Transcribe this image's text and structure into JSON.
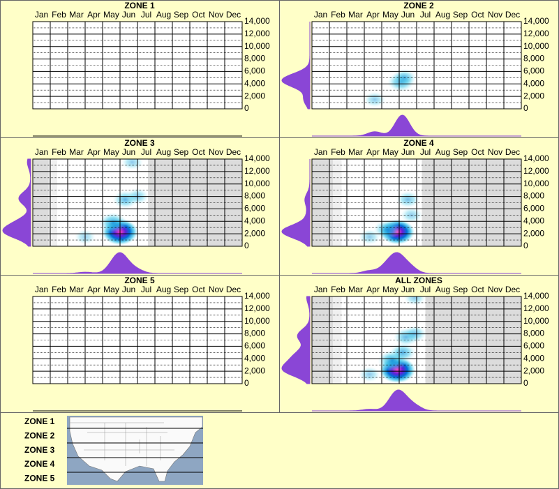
{
  "chart_data": [
    {
      "type": "heatmap",
      "title": "ZONE 1",
      "categories": [
        "Jan",
        "Feb",
        "Mar",
        "Apr",
        "May",
        "Jun",
        "Jul",
        "Aug",
        "Sep",
        "Oct",
        "Nov",
        "Dec"
      ],
      "xlim": [
        0,
        12
      ],
      "ylim": [
        0,
        14000
      ],
      "yticks": [
        0,
        {
          "value": 2000,
          "label": "2,000"
        },
        {
          "value": 4000,
          "label": "4,000"
        },
        {
          "value": 6000,
          "label": "6,000"
        },
        {
          "value": 8000,
          "label": "8,000"
        },
        {
          "value": 10000,
          "label": "10,000"
        },
        {
          "value": 12000,
          "label": "12,000"
        },
        {
          "value": 14000,
          "label": "14,000"
        }
      ],
      "shaded": false,
      "x": [],
      "values": [],
      "weights": [],
      "color": "#8a46d6"
    },
    {
      "type": "heatmap",
      "title": "ZONE 2",
      "categories": [
        "Jan",
        "Feb",
        "Mar",
        "Apr",
        "May",
        "Jun",
        "Jul",
        "Aug",
        "Sep",
        "Oct",
        "Nov",
        "Dec"
      ],
      "xlim": [
        0,
        12
      ],
      "ylim": [
        0,
        14000
      ],
      "yticks": [
        0,
        {
          "value": 2000,
          "label": "2,000"
        },
        {
          "value": 4000,
          "label": "4,000"
        },
        {
          "value": 6000,
          "label": "6,000"
        },
        {
          "value": 8000,
          "label": "8,000"
        },
        {
          "value": 10000,
          "label": "10,000"
        },
        {
          "value": 12000,
          "label": "12,000"
        },
        {
          "value": 14000,
          "label": "14,000"
        }
      ],
      "shaded": false,
      "x": [
        5.1,
        5.3,
        3.6
      ],
      "values": [
        4300,
        5000,
        1500
      ],
      "weights": [
        0.45,
        0.3,
        0.15
      ],
      "color": "#8a46d6"
    },
    {
      "type": "heatmap",
      "title": "ZONE 3",
      "categories": [
        "Jan",
        "Feb",
        "Mar",
        "Apr",
        "May",
        "Jun",
        "Jul",
        "Aug",
        "Sep",
        "Oct",
        "Nov",
        "Dec"
      ],
      "xlim": [
        0,
        12
      ],
      "ylim": [
        0,
        14000
      ],
      "yticks": [
        0,
        {
          "value": 2000,
          "label": "2,000"
        },
        {
          "value": 4000,
          "label": "4,000"
        },
        {
          "value": 6000,
          "label": "6,000"
        },
        {
          "value": 8000,
          "label": "8,000"
        },
        {
          "value": 10000,
          "label": "10,000"
        },
        {
          "value": 12000,
          "label": "12,000"
        },
        {
          "value": 14000,
          "label": "14,000"
        }
      ],
      "shaded": true,
      "x": [
        5.0,
        4.6,
        5.3,
        6.0,
        5.7,
        3.0
      ],
      "values": [
        2300,
        3800,
        7500,
        8000,
        13500,
        1500
      ],
      "weights": [
        1.0,
        0.5,
        0.35,
        0.2,
        0.15,
        0.1
      ],
      "color": "#8a46d6"
    },
    {
      "type": "heatmap",
      "title": "ZONE 4",
      "categories": [
        "Jan",
        "Feb",
        "Mar",
        "Apr",
        "May",
        "Jun",
        "Jul",
        "Aug",
        "Sep",
        "Oct",
        "Nov",
        "Dec"
      ],
      "xlim": [
        0,
        12
      ],
      "ylim": [
        0,
        14000
      ],
      "yticks": [
        0,
        {
          "value": 2000,
          "label": "2,000"
        },
        {
          "value": 4000,
          "label": "4,000"
        },
        {
          "value": 6000,
          "label": "6,000"
        },
        {
          "value": 8000,
          "label": "8,000"
        },
        {
          "value": 10000,
          "label": "10,000"
        },
        {
          "value": 12000,
          "label": "12,000"
        },
        {
          "value": 14000,
          "label": "14,000"
        }
      ],
      "shaded": true,
      "x": [
        4.9,
        4.3,
        5.5,
        5.7,
        3.3
      ],
      "values": [
        2300,
        2700,
        7500,
        5000,
        1500
      ],
      "weights": [
        0.9,
        0.45,
        0.25,
        0.15,
        0.15
      ],
      "color": "#8a46d6"
    },
    {
      "type": "heatmap",
      "title": "ZONE 5",
      "categories": [
        "Jan",
        "Feb",
        "Mar",
        "Apr",
        "May",
        "Jun",
        "Jul",
        "Aug",
        "Sep",
        "Oct",
        "Nov",
        "Dec"
      ],
      "xlim": [
        0,
        12
      ],
      "ylim": [
        0,
        14000
      ],
      "yticks": [
        0,
        {
          "value": 2000,
          "label": "2,000"
        },
        {
          "value": 4000,
          "label": "4,000"
        },
        {
          "value": 6000,
          "label": "6,000"
        },
        {
          "value": 8000,
          "label": "8,000"
        },
        {
          "value": 10000,
          "label": "10,000"
        },
        {
          "value": 12000,
          "label": "12,000"
        },
        {
          "value": 14000,
          "label": "14,000"
        }
      ],
      "shaded": false,
      "x": [],
      "values": [],
      "weights": [],
      "color": "#8a46d6"
    },
    {
      "type": "heatmap",
      "title": "ALL ZONES",
      "categories": [
        "Jan",
        "Feb",
        "Mar",
        "Apr",
        "May",
        "Jun",
        "Jul",
        "Aug",
        "Sep",
        "Oct",
        "Nov",
        "Dec"
      ],
      "xlim": [
        0,
        12
      ],
      "ylim": [
        0,
        14000
      ],
      "yticks": [
        0,
        {
          "value": 2000,
          "label": "2,000"
        },
        {
          "value": 4000,
          "label": "4,000"
        },
        {
          "value": 6000,
          "label": "6,000"
        },
        {
          "value": 8000,
          "label": "8,000"
        },
        {
          "value": 10000,
          "label": "10,000"
        },
        {
          "value": 12000,
          "label": "12,000"
        },
        {
          "value": 14000,
          "label": "14,000"
        }
      ],
      "shaded": true,
      "x": [
        4.9,
        4.6,
        5.2,
        5.4,
        5.9,
        5.9,
        3.3
      ],
      "values": [
        2200,
        3700,
        5000,
        7500,
        8000,
        13800,
        1500
      ],
      "weights": [
        1.0,
        0.55,
        0.4,
        0.35,
        0.25,
        0.15,
        0.15
      ],
      "color": "#8a46d6"
    }
  ],
  "legend": {
    "zones": [
      "ZONE 1",
      "ZONE 2",
      "ZONE 3",
      "ZONE 4",
      "ZONE 5"
    ]
  }
}
